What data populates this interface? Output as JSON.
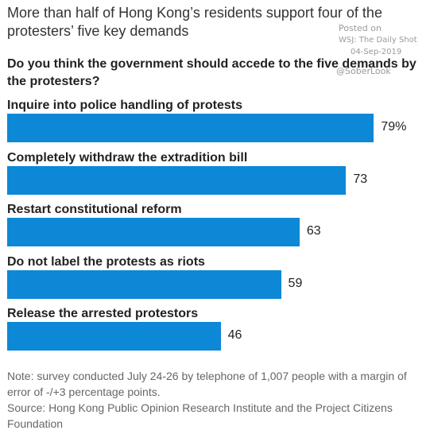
{
  "title": "More than half of Hong Kong’s residents support four of the protesters’ five key demands",
  "watermark": {
    "posted": "Posted on",
    "source": "WSJ: The Daily Shot",
    "date": "04-Sep-2019",
    "handle": "@SoberLook"
  },
  "question": "Do you think the government should accede to the five demands by the protesters?",
  "chart_data": {
    "type": "bar",
    "orientation": "horizontal",
    "categories": [
      "Inquire into police handling of protests",
      "Completely withdraw the extradition bill",
      "Restart constitutional reform",
      "Do not label the protests as riots",
      "Release the arrested protestors"
    ],
    "values": [
      79,
      73,
      63,
      59,
      46
    ],
    "value_labels": [
      "79%",
      "73",
      "63",
      "59",
      "46"
    ],
    "xlim": [
      0,
      100
    ],
    "bar_color": "#0d88d6",
    "grid": false,
    "legend": "none"
  },
  "note": "Note: survey conducted July 24-26 by telephone of 1,007 people with a margin of error of -/+3 percentage points.",
  "source": "Source: Hong Kong Public Opinion Research Institute and the Project Citizens Foundation"
}
